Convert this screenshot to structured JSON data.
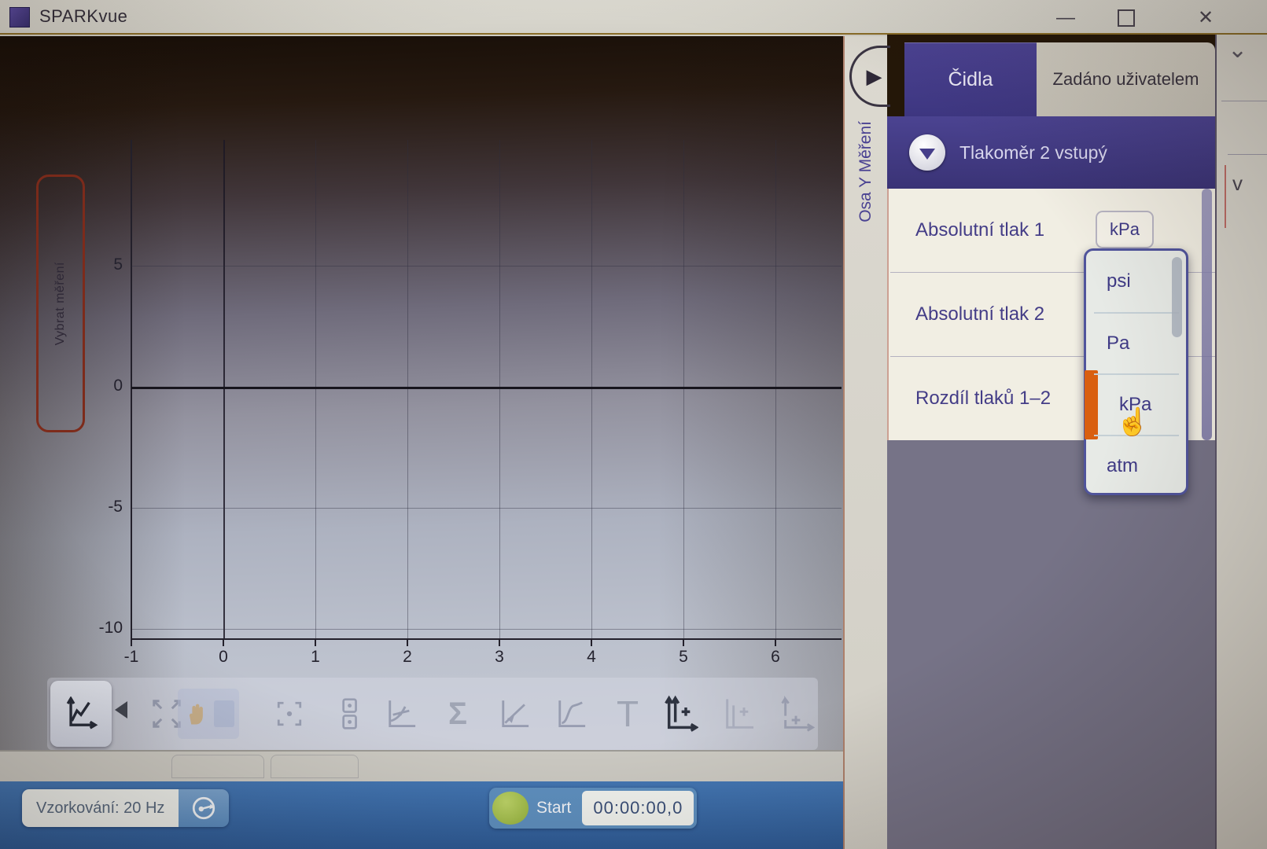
{
  "titlebar": {
    "title": "SPARKvue",
    "controls": {
      "minimize": "—",
      "maximize": "maximize",
      "close": "✕"
    }
  },
  "graph_page": {
    "select_measurement": "Vybrat měření",
    "y_axis_selector": "Osa Y Měření"
  },
  "chart_data": {
    "type": "line",
    "title": "",
    "xlabel": "",
    "ylabel": "",
    "series": [],
    "x_ticks": [
      -1,
      0,
      1,
      2,
      3,
      4,
      5,
      6
    ],
    "x_tick_labels": [
      "-1",
      "0",
      "1",
      "2",
      "3",
      "4",
      "5",
      "6"
    ],
    "y_ticks": [
      5,
      0,
      -5,
      -10
    ],
    "y_tick_labels": [
      "5",
      "0",
      "-5",
      "-10"
    ],
    "xlim": [
      -1,
      6.7
    ],
    "ylim": [
      -10.4,
      10.2
    ],
    "grid": true,
    "zero_lines_emphasized": true
  },
  "toolbar": {
    "icons": [
      {
        "name": "line-graph-mode"
      },
      {
        "name": "mode-selector-caret"
      },
      {
        "name": "scale-to-fit"
      },
      {
        "name": "pan-tool"
      },
      {
        "name": "select-region"
      },
      {
        "name": "data-coordinates"
      },
      {
        "name": "slope-tool"
      },
      {
        "name": "statistics-sigma"
      },
      {
        "name": "linear-fit"
      },
      {
        "name": "curve-fit"
      },
      {
        "name": "annotation-text"
      },
      {
        "name": "add-y-axis"
      },
      {
        "name": "add-plot-area"
      },
      {
        "name": "add-axis-page"
      }
    ],
    "sigma": "Σ",
    "annotation_t": "T"
  },
  "sampling": {
    "label": "Vzorkování: 20 Hz"
  },
  "run_controls": {
    "start": "Start",
    "timer": "00:00:00,0"
  },
  "panel": {
    "tabs": [
      {
        "label": "Čidla",
        "active": true
      },
      {
        "label": "Zadáno uživatelem",
        "active": false
      }
    ],
    "sensor_group": {
      "title": "Tlakoměr 2 vstupý"
    },
    "measurements": [
      {
        "label": "Absolutní tlak 1",
        "unit": "kPa"
      },
      {
        "label": "Absolutní tlak 2"
      },
      {
        "label": "Rozdíl tlaků 1–2"
      }
    ],
    "unit_menu": {
      "items": [
        {
          "label": "psi"
        },
        {
          "label": "Pa"
        },
        {
          "label": "kPa",
          "selected": true
        },
        {
          "label": "atm"
        }
      ],
      "selected": "kPa"
    }
  },
  "right_edge": {
    "chevron": "⌄",
    "text_fragment": "v"
  },
  "colors": {
    "accent_purple": "#453e8a",
    "header_purple": "#4b4391",
    "selection_orange": "#d95f10",
    "run_green": "#a9c657",
    "bottom_bar_blue": "#3a6cab",
    "select_measurement_border": "#7d2b1b"
  }
}
